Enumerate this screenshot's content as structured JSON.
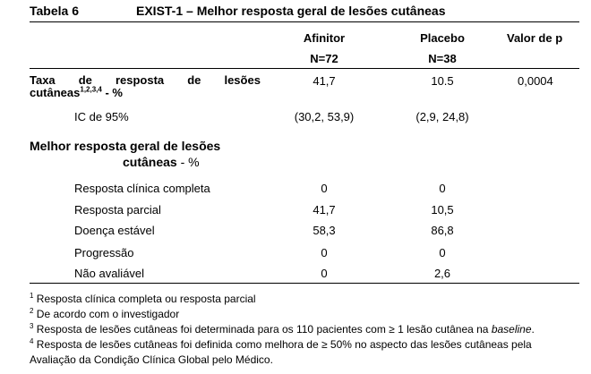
{
  "table": {
    "label": "Tabela 6",
    "title": "EXIST-1 – Melhor resposta geral de lesões cutâneas"
  },
  "columns": {
    "afinitor": "Afinitor",
    "afinitor_n": "N=72",
    "placebo": "Placebo",
    "placebo_n": "N=38",
    "p_value": "Valor de p"
  },
  "rate_row": {
    "label_line1": [
      "Taxa",
      "de",
      "resposta",
      "de",
      "lesões"
    ],
    "label_line2_text": "cutâneas",
    "label_line2_sup": "1,2,3,4",
    "label_line2_suffix": " - %",
    "afinitor": "41,7",
    "placebo": "10.5",
    "p": "0,0004"
  },
  "ci_row": {
    "label": "IC de 95%",
    "afinitor": "(30,2, 53,9)",
    "placebo": "(2,9, 24,8)"
  },
  "section": {
    "title_line1": "Melhor resposta geral de lesões",
    "title_line2_bold": "cutâneas",
    "title_line2_suffix": " - %"
  },
  "rows": [
    {
      "label": "Resposta clínica completa",
      "afinitor": "0",
      "placebo": "0"
    },
    {
      "label": "Resposta parcial",
      "afinitor": "41,7",
      "placebo": "10,5"
    },
    {
      "label": "Doença estável",
      "afinitor": "58,3",
      "placebo": "86,8"
    },
    {
      "label": "Progressão",
      "afinitor": "0",
      "placebo": "0"
    },
    {
      "label": "Não avaliável",
      "afinitor": "0",
      "placebo": "2,6"
    }
  ],
  "footnotes": [
    {
      "num": "1",
      "text": "Resposta clínica completa ou resposta parcial"
    },
    {
      "num": "2",
      "text": "De acordo com o investigador"
    },
    {
      "num": "3",
      "text": "Resposta de lesões cutâneas foi determinada para os 110 pacientes com ≥ 1 lesão cutânea na ",
      "italic": "baseline",
      "after": "."
    },
    {
      "num": "4",
      "text": "Resposta de lesões cutâneas foi definida como melhora de ≥ 50% no aspecto das lesões cutâneas pela",
      "line2": "Avaliação da Condição Clínica Global pelo Médico."
    }
  ]
}
